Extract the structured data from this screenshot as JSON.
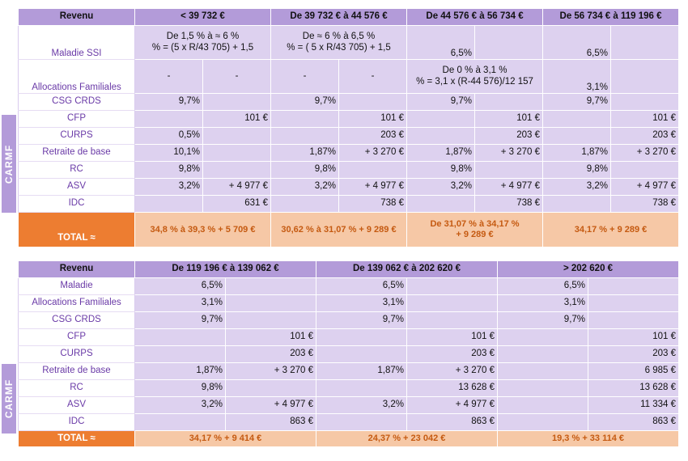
{
  "table1": {
    "headers": [
      "Revenu",
      "< 39 732 €",
      "De 39 732 € à 44 576 €",
      "De 44 576 € à 56 734 €",
      "De 56 734 € à 119 196 €"
    ],
    "maladie": {
      "label": "Maladie SSI",
      "b1_l1": "De 1,5 % à ≈ 6 %",
      "b1_l2": "% = (5 x R/43 705) + 1,5",
      "b2_l1": "De ≈ 6 % à 6,5 %",
      "b2_l2": "% = ( 5 x R/43 705) + 1,5",
      "b3": "6,5%",
      "b4": "6,5%"
    },
    "alloc": {
      "label": "Allocations Familiales",
      "d1": "-",
      "d2": "-",
      "d3": "-",
      "d4": "-",
      "b3_l1": "De 0 % à 3,1 %",
      "b3_l2": "% = 3,1 x (R-44 576)/12 157",
      "b4": "3,1%"
    },
    "csg": {
      "label": "CSG CRDS",
      "b1": "9,7%",
      "b2": "9,7%",
      "b3": "9,7%",
      "b4": "9,7%"
    },
    "cfp": {
      "label": "CFP",
      "b1": "101 €",
      "b2": "101 €",
      "b3": "101 €",
      "b4": "101 €"
    },
    "curps": {
      "label": "CURPS",
      "b1": "0,5%",
      "b2": "203 €",
      "b3": "203 €",
      "b4": "203 €"
    },
    "retraite": {
      "label": "Retraite de base",
      "b1": "10,1%",
      "b2_p": "1,87%",
      "b2_f": "+ 3 270 €",
      "b3_p": "1,87%",
      "b3_f": "+ 3 270 €",
      "b4_p": "1,87%",
      "b4_f": "+ 3 270 €"
    },
    "rc": {
      "label": "RC",
      "b1": "9,8%",
      "b2": "9,8%",
      "b3": "9,8%",
      "b4": "9,8%"
    },
    "asv": {
      "label": "ASV",
      "b1_p": "3,2%",
      "b1_f": "+ 4 977 €",
      "b2_p": "3,2%",
      "b2_f": "+ 4 977 €",
      "b3_p": "3,2%",
      "b3_f": "+ 4 977 €",
      "b4_p": "3,2%",
      "b4_f": "+ 4 977 €"
    },
    "idc": {
      "label": "IDC",
      "b1": "631 €",
      "b2": "738 €",
      "b3": "738 €",
      "b4": "738 €"
    },
    "total": {
      "label": "TOTAL ≈",
      "b1": "34,8 % à 39,3 % + 5 709 €",
      "b2": "30,62 % à 31,07 % + 9 289 €",
      "b3_l1": "De 31,07 % à 34,17 %",
      "b3_l2": "+ 9 289 €",
      "b4": "34,17 % + 9 289 €"
    },
    "carmf": "CARMF"
  },
  "table2": {
    "headers": [
      "Revenu",
      "De 119 196 € à 139 062 €",
      "De 139 062 € à 202 620 €",
      "> 202 620 €"
    ],
    "maladie": {
      "label": "Maladie",
      "b1": "6,5%",
      "b2": "6,5%",
      "b3": "6,5%"
    },
    "alloc": {
      "label": "Allocations Familiales",
      "b1": "3,1%",
      "b2": "3,1%",
      "b3": "3,1%"
    },
    "csg": {
      "label": "CSG CRDS",
      "b1": "9,7%",
      "b2": "9,7%",
      "b3": "9,7%"
    },
    "cfp": {
      "label": "CFP",
      "b1": "101 €",
      "b2": "101 €",
      "b3": "101 €"
    },
    "curps": {
      "label": "CURPS",
      "b1": "203 €",
      "b2": "203 €",
      "b3": "203 €"
    },
    "retraite": {
      "label": "Retraite de base",
      "b1_p": "1,87%",
      "b1_f": "+ 3 270 €",
      "b2_p": "1,87%",
      "b2_f": "+ 3 270 €",
      "b3": "6 985 €"
    },
    "rc": {
      "label": "RC",
      "b1": "9,8%",
      "b2": "13 628 €",
      "b3": "13 628 €"
    },
    "asv": {
      "label": "ASV",
      "b1_p": "3,2%",
      "b1_f": "+ 4 977 €",
      "b2_p": "3,2%",
      "b2_f": "+ 4 977 €",
      "b3": "11 334 €"
    },
    "idc": {
      "label": "IDC",
      "b1": "863 €",
      "b2": "863 €",
      "b3": "863 €"
    },
    "total": {
      "label": "TOTAL ≈",
      "b1": "34,17 % + 9 414 €",
      "b2": "24,37 % + 23 042 €",
      "b3": "19,3 % + 33 114 €"
    },
    "carmf": "CARMF"
  }
}
